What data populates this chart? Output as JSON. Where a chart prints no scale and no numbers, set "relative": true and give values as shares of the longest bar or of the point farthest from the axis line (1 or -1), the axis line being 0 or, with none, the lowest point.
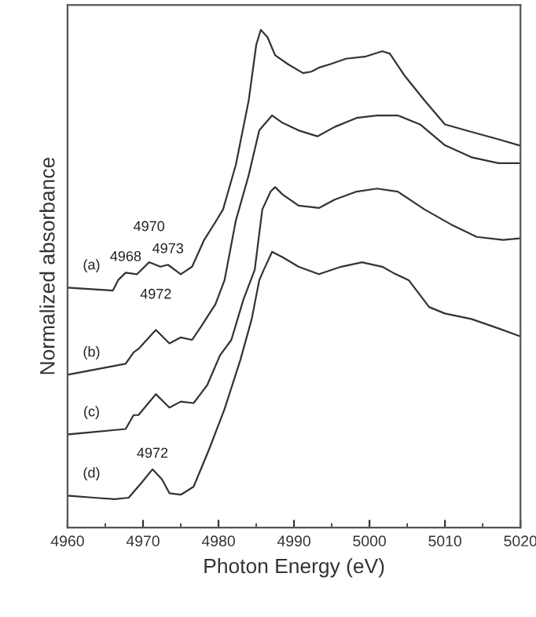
{
  "chart_data": {
    "type": "line",
    "relative": true,
    "xlabel": "Photon Energy (eV)",
    "ylabel": "Normalized absorbance",
    "xlim": [
      4960,
      5020
    ],
    "xticks": [
      4960,
      4970,
      4980,
      4990,
      5000,
      5010,
      5020
    ],
    "tick_labels": "x",
    "grid": false,
    "legend": false,
    "series": [
      {
        "color": "#333333",
        "x": [
          4960,
          4966.0,
          4966.7,
          4967.7,
          4969.2,
          4970.8,
          4972.3,
          4973.3,
          4975.0,
          4976.5,
          4978.1,
          4979.6,
          4980.6,
          4982.3,
          4984.0,
          4985.0,
          4985.6,
          4986.5,
          4987.5,
          4989.2,
          4991.2,
          4992.3,
          4993.3,
          4994.8,
          4996.9,
          4999.4,
          5001.7,
          5002.7,
          5004.6,
          5007.3,
          5010.0,
          5013.5,
          5017.1,
          5019.8
        ],
        "values": [
          0.482,
          0.476,
          0.497,
          0.512,
          0.509,
          0.533,
          0.524,
          0.528,
          0.509,
          0.524,
          0.578,
          0.614,
          0.639,
          0.729,
          0.858,
          0.97,
          1.0,
          0.985,
          0.949,
          0.931,
          0.913,
          0.916,
          0.924,
          0.931,
          0.942,
          0.946,
          0.957,
          0.952,
          0.909,
          0.858,
          0.81,
          0.795,
          0.78,
          0.768
        ]
      },
      {
        "color": "#333333",
        "x": [
          4960,
          4967.7,
          4968.75,
          4969.4,
          4971.7,
          4973.5,
          4975.0,
          4976.5,
          4977.7,
          4979.6,
          4980.8,
          4982.3,
          4984.0,
          4985.4,
          4987.1,
          4988.5,
          4990.6,
          4993.1,
          4995.4,
          4998.3,
          5001.0,
          5003.75,
          5006.7,
          5010.0,
          5013.5,
          5017.1,
          5019.8
        ],
        "values": [
          0.307,
          0.329,
          0.352,
          0.359,
          0.397,
          0.37,
          0.382,
          0.377,
          0.404,
          0.449,
          0.497,
          0.617,
          0.708,
          0.798,
          0.828,
          0.813,
          0.798,
          0.786,
          0.805,
          0.823,
          0.828,
          0.828,
          0.81,
          0.768,
          0.744,
          0.732,
          0.732
        ]
      },
      {
        "color": "#333333",
        "x": [
          4960,
          4967.7,
          4968.75,
          4969.4,
          4971.7,
          4973.5,
          4975.0,
          4976.7,
          4978.5,
          4980.2,
          4981.7,
          4983.3,
          4984.8,
          4985.8,
          4986.9,
          4987.5,
          4988.5,
          4990.6,
          4993.3,
          4995.4,
          4998.3,
          5001.0,
          5003.75,
          5007.3,
          5010.8,
          5014.2,
          5017.7,
          5019.8
        ],
        "values": [
          0.187,
          0.198,
          0.226,
          0.226,
          0.268,
          0.241,
          0.253,
          0.25,
          0.286,
          0.346,
          0.377,
          0.458,
          0.518,
          0.639,
          0.675,
          0.684,
          0.669,
          0.647,
          0.642,
          0.659,
          0.675,
          0.681,
          0.675,
          0.639,
          0.609,
          0.584,
          0.578,
          0.581
        ]
      },
      {
        "color": "#333333",
        "x": [
          4960,
          4963.5,
          4966.25,
          4968.1,
          4969.8,
          4971.25,
          4972.5,
          4973.5,
          4975.0,
          4976.7,
          4978.75,
          4980.8,
          4982.9,
          4984.4,
          4985.4,
          4986.0,
          4987.1,
          4988.5,
          4990.6,
          4993.3,
          4996.25,
          4999.0,
          5001.7,
          5003.1,
          5005.2,
          5007.9,
          5010.0,
          5013.5,
          5017.1,
          5019.8
        ],
        "values": [
          0.064,
          0.06,
          0.057,
          0.06,
          0.09,
          0.117,
          0.097,
          0.069,
          0.066,
          0.082,
          0.157,
          0.238,
          0.337,
          0.419,
          0.497,
          0.518,
          0.554,
          0.543,
          0.524,
          0.509,
          0.524,
          0.533,
          0.524,
          0.512,
          0.497,
          0.443,
          0.43,
          0.419,
          0.4,
          0.385
        ]
      }
    ],
    "annotations": [
      {
        "text": "(a)",
        "x": 4960,
        "y": 0.482
      },
      {
        "text": "(b)",
        "x": 4960,
        "y": 0.307
      },
      {
        "text": "(c)",
        "x": 4960,
        "y": 0.187
      },
      {
        "text": "(d)",
        "x": 4960,
        "y": 0.064
      },
      {
        "text": "4968",
        "x": 4967.7,
        "y": 0.512
      },
      {
        "text": "4970",
        "x": 4970.8,
        "y": 0.533
      },
      {
        "text": "4973",
        "x": 4973.3,
        "y": 0.528
      },
      {
        "text": "4972",
        "x": 4971.7,
        "y": 0.397
      },
      {
        "text": "4972",
        "x": 4971.25,
        "y": 0.117
      }
    ]
  }
}
